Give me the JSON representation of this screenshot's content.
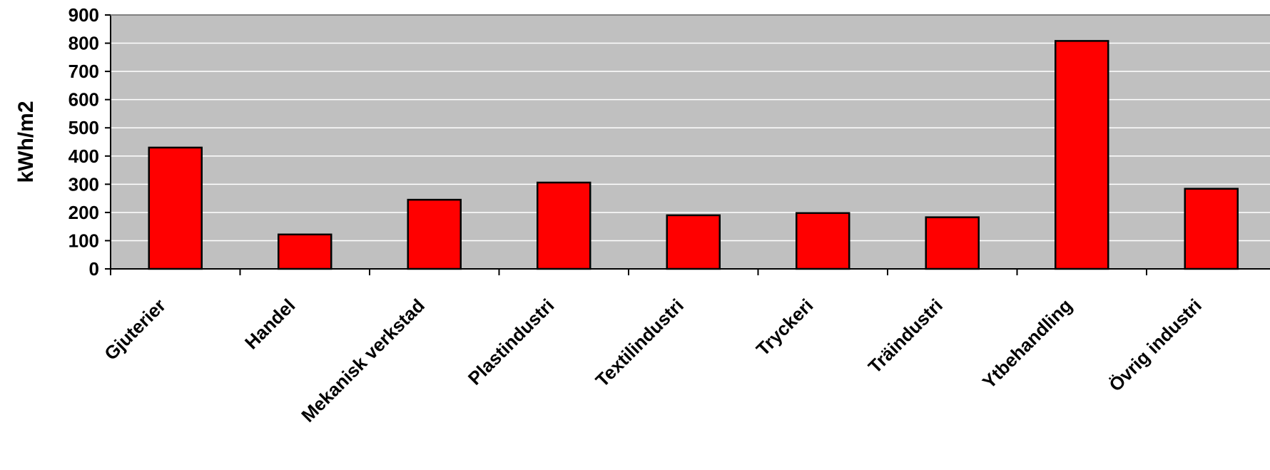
{
  "chart_data": {
    "type": "bar",
    "title": "",
    "xlabel": "",
    "ylabel": "kWh/m2",
    "categories": [
      "Gjuterier",
      "Handel",
      "Mekanisk verkstad",
      "Plastindustri",
      "Textilindustri",
      "Tryckeri",
      "Träindustri",
      "Ytbehandling",
      "Övrig industri"
    ],
    "values": [
      430,
      122,
      245,
      306,
      190,
      198,
      183,
      808,
      284
    ],
    "ylim": [
      0,
      900
    ],
    "yticks": [
      "0",
      "100",
      "200",
      "300",
      "400",
      "500",
      "600",
      "700",
      "800",
      "900"
    ],
    "grid": true,
    "legend": "none",
    "colors": {
      "bar": "#ff0000",
      "plot_background": "#c0c0c0",
      "gridline": "#ffffff",
      "outline": "#000000"
    }
  }
}
